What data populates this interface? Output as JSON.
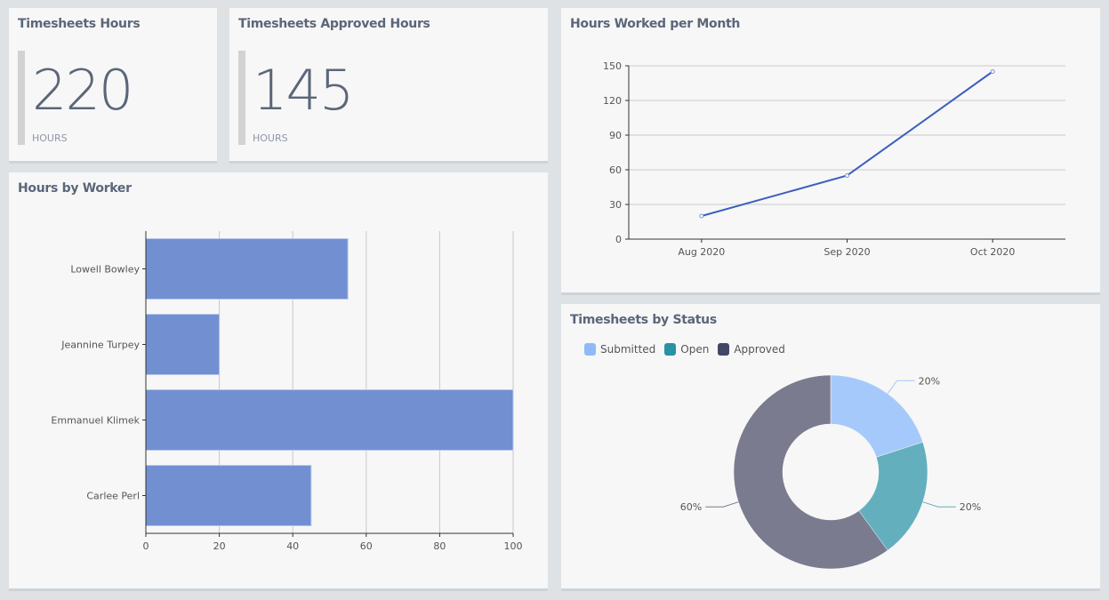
{
  "kpis": [
    {
      "title": "Timesheets Hours",
      "value": "220",
      "unit": "HOURS"
    },
    {
      "title": "Timesheets Approved Hours",
      "value": "145",
      "unit": "HOURS"
    }
  ],
  "chart_data": [
    {
      "type": "bar",
      "orientation": "horizontal",
      "title": "Hours by Worker",
      "categories": [
        "Lowell Bowley",
        "Jeannine Turpey",
        "Emmanuel Klimek",
        "Carlee Perl"
      ],
      "values": [
        55,
        20,
        100,
        45
      ],
      "xlim": [
        0,
        100
      ],
      "xticks": [
        "0",
        "20",
        "40",
        "60",
        "80",
        "100"
      ],
      "grid": true,
      "color": "#6f8dd1"
    },
    {
      "type": "line",
      "title": "Hours Worked per Month",
      "categories": [
        "Aug 2020",
        "Sep 2020",
        "Oct 2020"
      ],
      "values": [
        20,
        55,
        145
      ],
      "ylim": [
        0,
        150
      ],
      "yticks": [
        "0",
        "30",
        "60",
        "90",
        "120",
        "150"
      ],
      "grid": true,
      "color": "#3d5fbf"
    },
    {
      "type": "pie",
      "donut": true,
      "title": "Timesheets by Status",
      "legend_position": "top-left",
      "slices": [
        {
          "name": "Submitted",
          "value": 20,
          "label": "20%",
          "color": "#a6c9fc",
          "legend_color": "#8fbaf7"
        },
        {
          "name": "Open",
          "value": 20,
          "label": "20%",
          "color": "#64afbe",
          "legend_color": "#2a91a6"
        },
        {
          "name": "Approved",
          "value": 60,
          "label": "60%",
          "color": "#7a7b8f",
          "legend_color": "#434766"
        }
      ]
    }
  ]
}
